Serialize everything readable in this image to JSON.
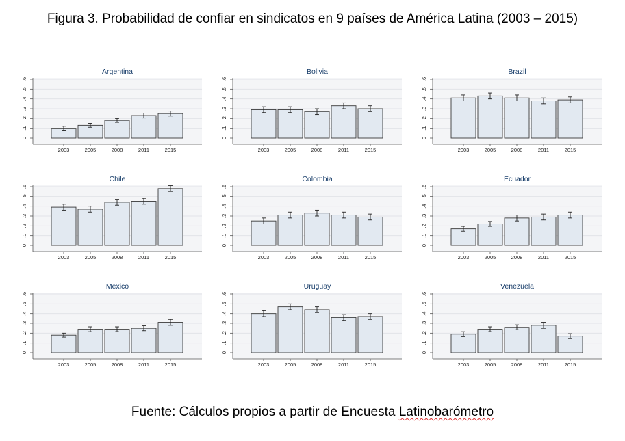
{
  "title": "Figura 3. Probabilidad de confiar en sindicatos en 9 países de América Latina (2003 – 2015)",
  "source": {
    "prefix": "Fuente: Cálculos propios a partir de Encuesta ",
    "underlined": "Latinobarómetro"
  },
  "colors": {
    "bar_fill": "#e2e9f1",
    "bar_stroke": "#3a3a3a",
    "plot_background": "#f4f5f7",
    "grid": "#e2e4e8",
    "error_bar": "#222222"
  },
  "chart_data": [
    {
      "type": "bar",
      "title": "Argentina",
      "categories": [
        "2003",
        "2005",
        "2008",
        "2011",
        "2015"
      ],
      "values": [
        0.1,
        0.13,
        0.18,
        0.23,
        0.25
      ],
      "errors": [
        0.02,
        0.02,
        0.02,
        0.025,
        0.025
      ],
      "ylim": [
        0,
        0.6
      ],
      "yticks": [
        "0",
        ".1",
        ".2",
        ".3",
        ".4",
        ".5",
        ".6"
      ]
    },
    {
      "type": "bar",
      "title": "Bolivia",
      "categories": [
        "2003",
        "2005",
        "2008",
        "2011",
        "2015"
      ],
      "values": [
        0.29,
        0.29,
        0.27,
        0.33,
        0.3
      ],
      "errors": [
        0.03,
        0.03,
        0.03,
        0.03,
        0.03
      ],
      "ylim": [
        0,
        0.6
      ],
      "yticks": [
        "0",
        ".1",
        ".2",
        ".3",
        ".4",
        ".5",
        ".6"
      ]
    },
    {
      "type": "bar",
      "title": "Brazil",
      "categories": [
        "2003",
        "2005",
        "2008",
        "2011",
        "2015"
      ],
      "values": [
        0.41,
        0.43,
        0.41,
        0.38,
        0.39
      ],
      "errors": [
        0.03,
        0.03,
        0.03,
        0.03,
        0.03
      ],
      "ylim": [
        0,
        0.6
      ],
      "yticks": [
        "0",
        ".1",
        ".2",
        ".3",
        ".4",
        ".5",
        ".6"
      ]
    },
    {
      "type": "bar",
      "title": "Chile",
      "categories": [
        "2003",
        "2005",
        "2008",
        "2011",
        "2015"
      ],
      "values": [
        0.39,
        0.37,
        0.44,
        0.45,
        0.58
      ],
      "errors": [
        0.03,
        0.03,
        0.03,
        0.03,
        0.03
      ],
      "ylim": [
        0,
        0.6
      ],
      "yticks": [
        "0",
        ".1",
        ".2",
        ".3",
        ".4",
        ".5",
        ".6"
      ]
    },
    {
      "type": "bar",
      "title": "Colombia",
      "categories": [
        "2003",
        "2005",
        "2008",
        "2011",
        "2015"
      ],
      "values": [
        0.25,
        0.31,
        0.33,
        0.31,
        0.29
      ],
      "errors": [
        0.03,
        0.03,
        0.03,
        0.03,
        0.03
      ],
      "ylim": [
        0,
        0.6
      ],
      "yticks": [
        "0",
        ".1",
        ".2",
        ".3",
        ".4",
        ".5",
        ".6"
      ]
    },
    {
      "type": "bar",
      "title": "Ecuador",
      "categories": [
        "2003",
        "2005",
        "2008",
        "2011",
        "2015"
      ],
      "values": [
        0.17,
        0.22,
        0.28,
        0.29,
        0.31
      ],
      "errors": [
        0.025,
        0.025,
        0.03,
        0.03,
        0.03
      ],
      "ylim": [
        0,
        0.6
      ],
      "yticks": [
        "0",
        ".1",
        ".2",
        ".3",
        ".4",
        ".5",
        ".6"
      ]
    },
    {
      "type": "bar",
      "title": "Mexico",
      "categories": [
        "2003",
        "2005",
        "2008",
        "2011",
        "2015"
      ],
      "values": [
        0.18,
        0.24,
        0.24,
        0.25,
        0.31
      ],
      "errors": [
        0.02,
        0.025,
        0.025,
        0.025,
        0.03
      ],
      "ylim": [
        0,
        0.6
      ],
      "yticks": [
        "0",
        ".1",
        ".2",
        ".3",
        ".4",
        ".5",
        ".6"
      ]
    },
    {
      "type": "bar",
      "title": "Uruguay",
      "categories": [
        "2003",
        "2005",
        "2008",
        "2011",
        "2015"
      ],
      "values": [
        0.4,
        0.47,
        0.44,
        0.36,
        0.37
      ],
      "errors": [
        0.03,
        0.03,
        0.03,
        0.03,
        0.03
      ],
      "ylim": [
        0,
        0.6
      ],
      "yticks": [
        "0",
        ".1",
        ".2",
        ".3",
        ".4",
        ".5",
        ".6"
      ]
    },
    {
      "type": "bar",
      "title": "Venezuela",
      "categories": [
        "2003",
        "2005",
        "2008",
        "2011",
        "2015"
      ],
      "values": [
        0.19,
        0.24,
        0.26,
        0.28,
        0.17
      ],
      "errors": [
        0.025,
        0.025,
        0.025,
        0.03,
        0.025
      ],
      "ylim": [
        0,
        0.6
      ],
      "yticks": [
        "0",
        ".1",
        ".2",
        ".3",
        ".4",
        ".5",
        ".6"
      ]
    }
  ]
}
